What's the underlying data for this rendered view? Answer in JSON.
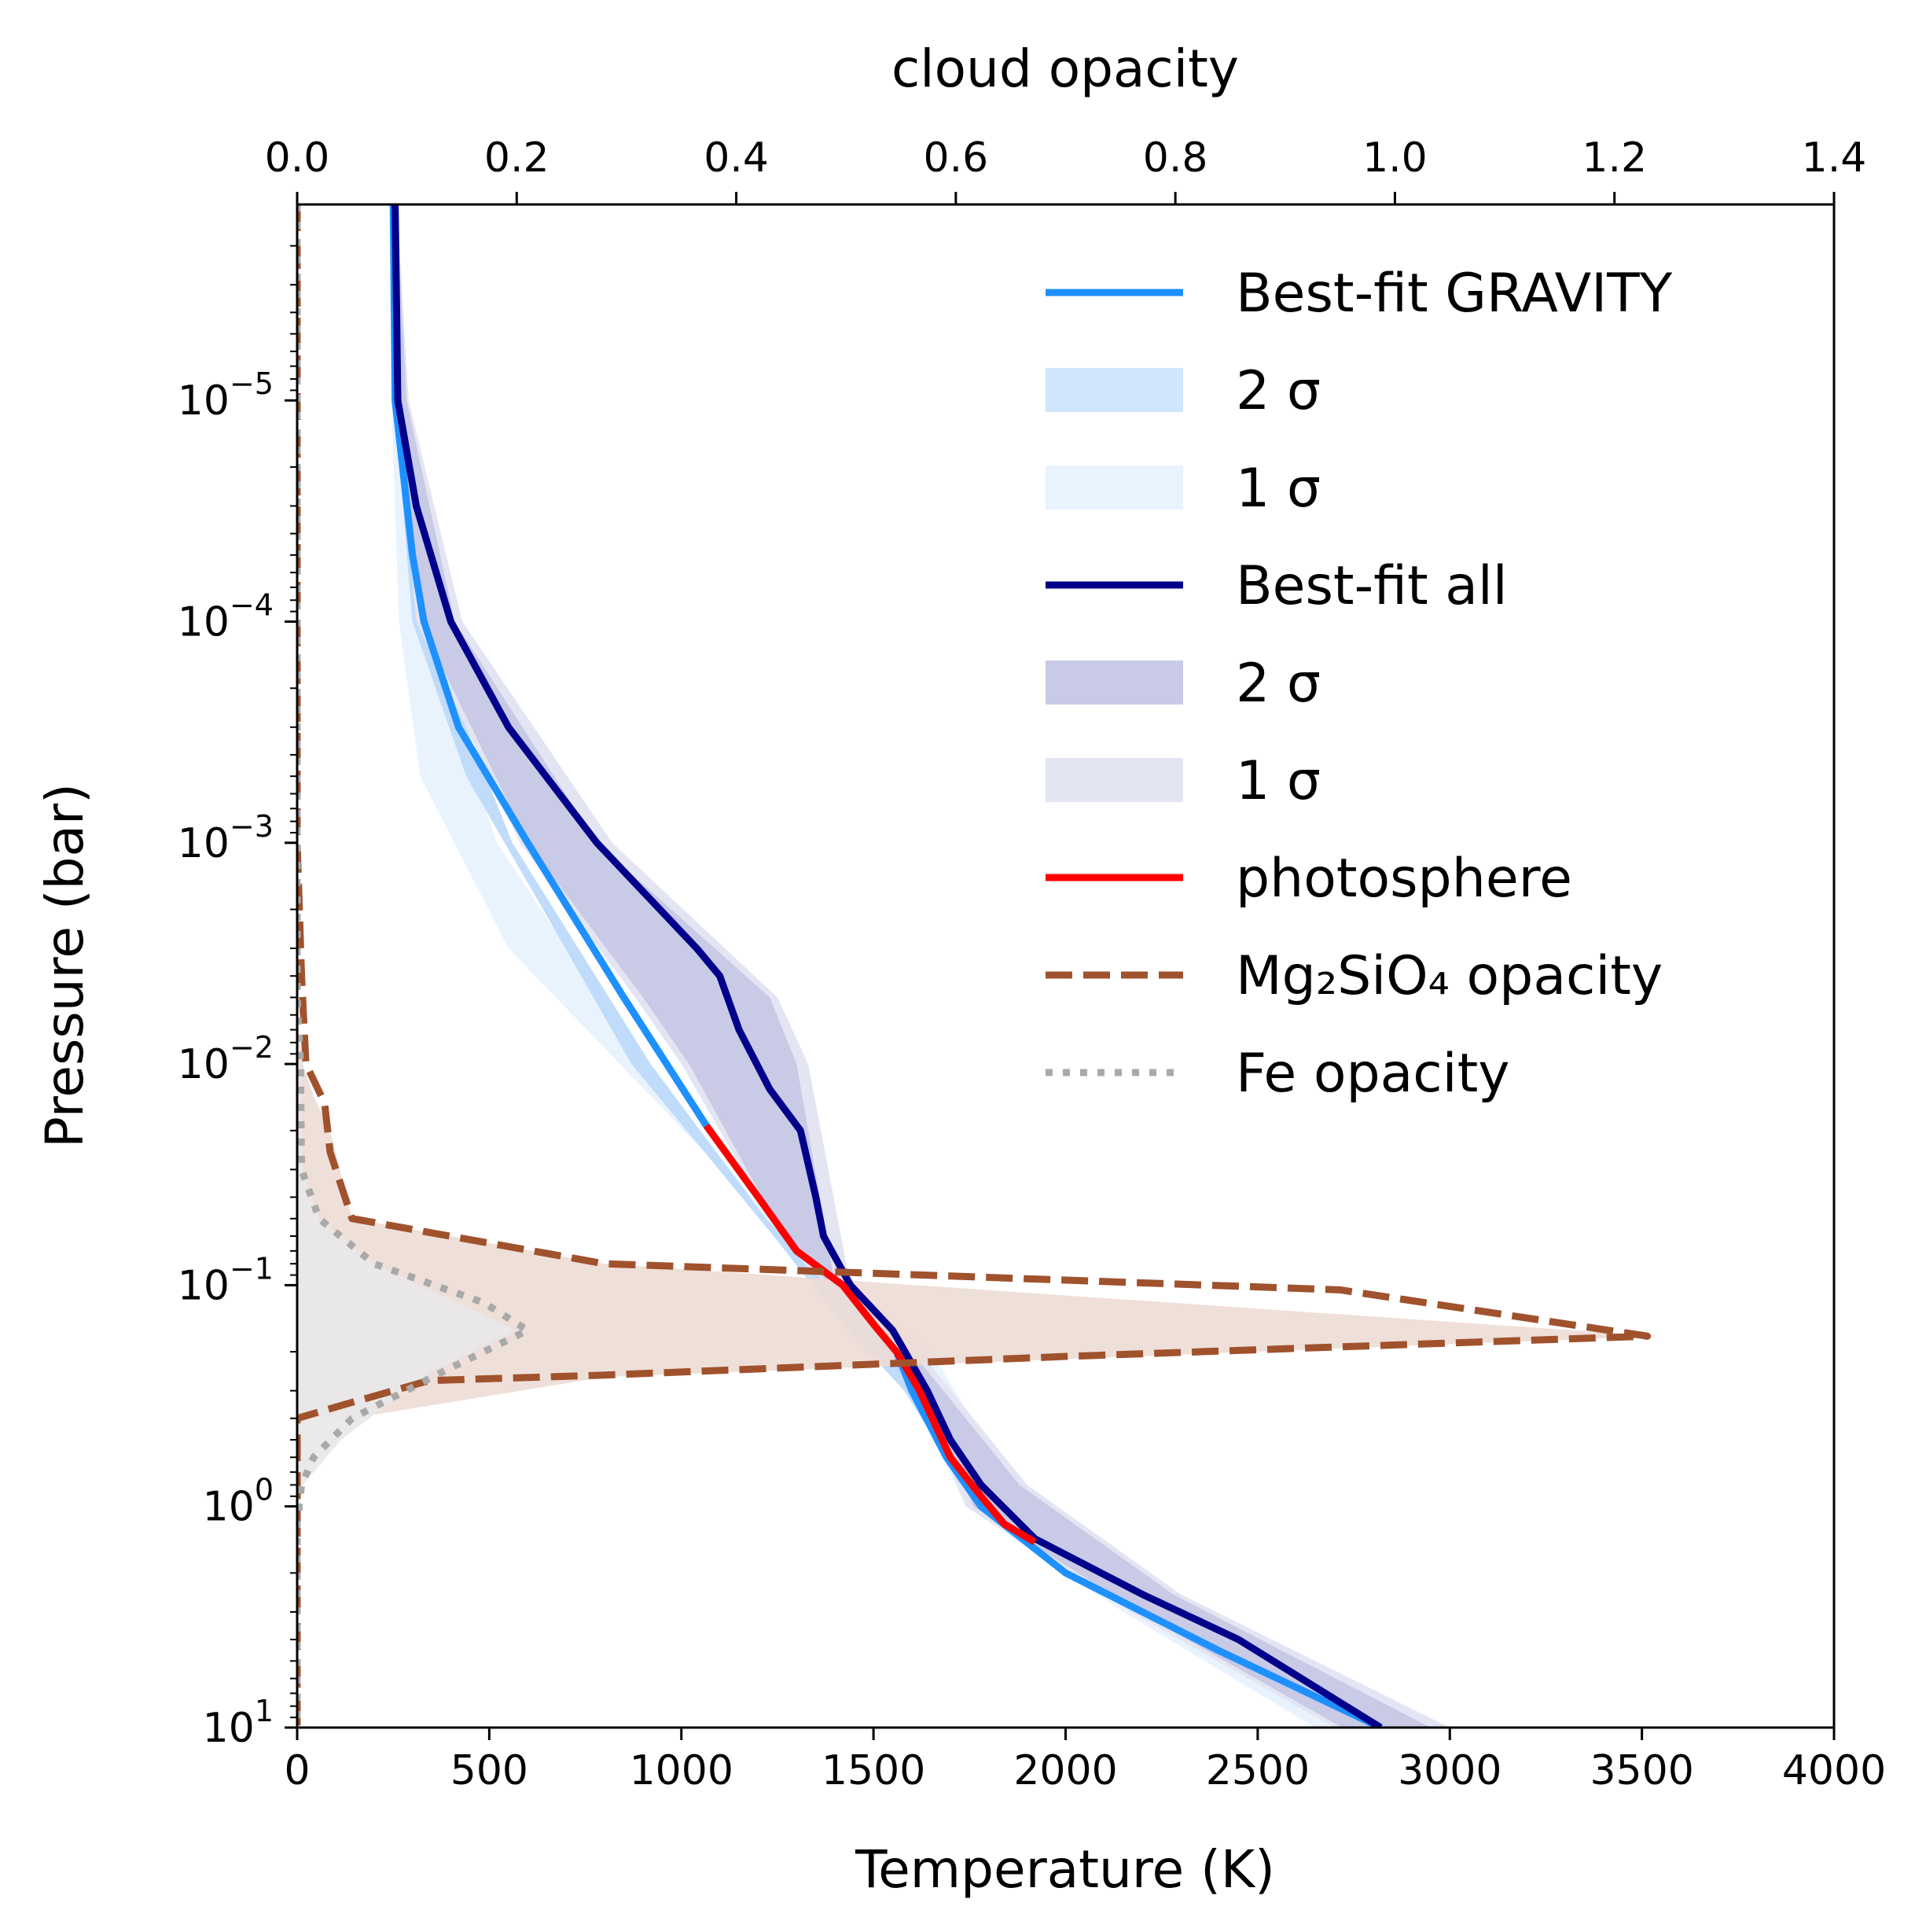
{
  "chart_data": {
    "type": "line",
    "title": "",
    "xlabel": "Temperature (K)",
    "ylabel": "Pressure (bar)",
    "x2label": "cloud opacity",
    "xlim": [
      0,
      4000
    ],
    "x2lim": [
      0,
      1.4
    ],
    "ylim": [
      1.3e-06,
      10
    ],
    "yscale": "log",
    "y_inverted": true,
    "grid": false,
    "legend_position": "top-right",
    "x_ticks": [
      "0",
      "500",
      "1000",
      "1500",
      "2000",
      "2500",
      "3000",
      "3500",
      "4000"
    ],
    "x2_ticks": [
      "0.0",
      "0.2",
      "0.4",
      "0.6",
      "0.8",
      "1.0",
      "1.2",
      "1.4"
    ],
    "y_ticks": [
      {
        "base": "10",
        "exp": "−5"
      },
      {
        "base": "10",
        "exp": "−4"
      },
      {
        "base": "10",
        "exp": "−3"
      },
      {
        "base": "10",
        "exp": "−2"
      },
      {
        "base": "10",
        "exp": "−1"
      },
      {
        "base": "10",
        "exp": "0"
      },
      {
        "base": "10",
        "exp": "1"
      }
    ],
    "legend": [
      {
        "label": "Best-fit GRAVITY",
        "kind": "line",
        "color": "#1e90ff"
      },
      {
        "label": "2 σ",
        "kind": "patch",
        "color": "#d0e6fc"
      },
      {
        "label": "1 σ",
        "kind": "patch",
        "color": "#e9f3fe"
      },
      {
        "label": "Best-fit all",
        "kind": "line",
        "color": "#00008b"
      },
      {
        "label": "2 σ",
        "kind": "patch",
        "color": "#c9cae6"
      },
      {
        "label": "1 σ",
        "kind": "patch",
        "color": "#e4e5f2"
      },
      {
        "label": "photosphere",
        "kind": "line",
        "color": "#ff0000"
      },
      {
        "label": "Mg₂SiO₄ opacity",
        "kind": "dashed",
        "color": "#a0522d"
      },
      {
        "label": "Fe opacity",
        "kind": "dotted",
        "color": "#a9a9a9"
      }
    ],
    "series": [
      {
        "id": "gravity-1sigma",
        "axis": "temperature",
        "color": "#e9f3fe",
        "upper": [
          [
            250,
            1.3e-06
          ],
          [
            265,
            1e-05
          ],
          [
            320,
            0.0001
          ],
          [
            520,
            0.001
          ],
          [
            900,
            0.01
          ],
          [
            1230,
            0.05
          ],
          [
            1450,
            0.1
          ],
          [
            1650,
            0.2
          ],
          [
            1860,
            0.8
          ],
          [
            2250,
            2.5
          ],
          [
            2950,
            10
          ]
        ],
        "lower": [
          [
            250,
            1.3e-06
          ],
          [
            245,
            1e-05
          ],
          [
            265,
            0.0001
          ],
          [
            320,
            0.0005
          ],
          [
            550,
            0.003
          ],
          [
            840,
            0.01
          ],
          [
            1060,
            0.025
          ],
          [
            1260,
            0.06
          ],
          [
            1440,
            0.15
          ],
          [
            1600,
            0.3
          ],
          [
            1740,
            1
          ],
          [
            2150,
            3
          ],
          [
            2650,
            10
          ]
        ]
      },
      {
        "id": "gravity-2sigma",
        "axis": "temperature",
        "color": "#c0dcfa",
        "upper": [
          [
            255,
            1.3e-06
          ],
          [
            265,
            1e-05
          ],
          [
            330,
            0.0001
          ],
          [
            560,
            0.001
          ],
          [
            920,
            0.01
          ],
          [
            1220,
            0.05
          ],
          [
            1390,
            0.1
          ],
          [
            1610,
            0.2
          ],
          [
            1830,
            0.8
          ],
          [
            2200,
            2.5
          ],
          [
            2900,
            10
          ]
        ],
        "lower": [
          [
            255,
            1.3e-06
          ],
          [
            252,
            1e-05
          ],
          [
            300,
            0.0001
          ],
          [
            440,
            0.0005
          ],
          [
            640,
            0.002
          ],
          [
            870,
            0.01
          ],
          [
            1060,
            0.025
          ],
          [
            1240,
            0.06
          ],
          [
            1420,
            0.15
          ],
          [
            1580,
            0.3
          ],
          [
            1770,
            1
          ],
          [
            2180,
            3
          ],
          [
            2700,
            10
          ]
        ]
      },
      {
        "id": "all-1sigma",
        "axis": "temperature",
        "color": "#e4e5f2",
        "upper": [
          [
            260,
            1.3e-06
          ],
          [
            290,
            1e-05
          ],
          [
            430,
            0.0001
          ],
          [
            820,
            0.001
          ],
          [
            1250,
            0.005
          ],
          [
            1330,
            0.01
          ],
          [
            1440,
            0.1
          ],
          [
            1620,
            0.2
          ],
          [
            1900,
            0.8
          ],
          [
            2300,
            2.5
          ],
          [
            3000,
            10
          ]
        ],
        "lower": [
          [
            250,
            1.3e-06
          ],
          [
            255,
            1e-05
          ],
          [
            310,
            0.0001
          ],
          [
            580,
            0.001
          ],
          [
            880,
            0.005
          ],
          [
            1000,
            0.01
          ],
          [
            1200,
            0.04
          ],
          [
            1320,
            0.08
          ],
          [
            1500,
            0.15
          ],
          [
            1620,
            0.3
          ],
          [
            1740,
            1
          ],
          [
            2170,
            3
          ],
          [
            2700,
            10
          ]
        ]
      },
      {
        "id": "all-2sigma",
        "axis": "temperature",
        "color": "#c9cae6",
        "upper": [
          [
            258,
            1.3e-06
          ],
          [
            285,
            1e-05
          ],
          [
            410,
            0.0001
          ],
          [
            780,
            0.001
          ],
          [
            1230,
            0.005
          ],
          [
            1300,
            0.01
          ],
          [
            1400,
            0.1
          ],
          [
            1600,
            0.2
          ],
          [
            1880,
            0.8
          ],
          [
            2280,
            2.5
          ],
          [
            2950,
            10
          ]
        ],
        "lower": [
          [
            252,
            1.3e-06
          ],
          [
            258,
            1e-05
          ],
          [
            320,
            0.0001
          ],
          [
            600,
            0.001
          ],
          [
            900,
            0.005
          ],
          [
            1020,
            0.01
          ],
          [
            1210,
            0.04
          ],
          [
            1330,
            0.08
          ],
          [
            1510,
            0.15
          ],
          [
            1630,
            0.3
          ],
          [
            1760,
            1
          ],
          [
            2190,
            3
          ],
          [
            2720,
            10
          ]
        ]
      },
      {
        "id": "cloud-mg2sio4-fill",
        "axis": "opacity",
        "color": "#eddcd5",
        "points": [
          [
            0,
            0.006
          ],
          [
            0.005,
            0.01
          ],
          [
            0.015,
            0.014
          ],
          [
            0.03,
            0.02
          ],
          [
            0.05,
            0.05
          ],
          [
            0.28,
            0.08
          ],
          [
            1.24,
            0.17
          ],
          [
            0.28,
            0.26
          ],
          [
            0.05,
            0.4
          ],
          [
            0,
            0.4
          ]
        ]
      },
      {
        "id": "cloud-fe-fill",
        "axis": "opacity",
        "color": "#e8e8e8",
        "points": [
          [
            0,
            0.006
          ],
          [
            0.003,
            0.01
          ],
          [
            0.005,
            0.03
          ],
          [
            0.02,
            0.05
          ],
          [
            0.07,
            0.08
          ],
          [
            0.2,
            0.16
          ],
          [
            0.12,
            0.25
          ],
          [
            0.04,
            0.5
          ],
          [
            0.005,
            0.8
          ],
          [
            0,
            1.3
          ]
        ]
      },
      {
        "id": "best-fit-gravity",
        "axis": "temperature",
        "color": "#1e90ff",
        "points": [
          [
            250,
            1.3e-06
          ],
          [
            255,
            1e-05
          ],
          [
            300,
            5e-05
          ],
          [
            330,
            0.0001
          ],
          [
            420,
            0.0003
          ],
          [
            600,
            0.001
          ],
          [
            850,
            0.005
          ],
          [
            1065,
            0.019
          ],
          [
            1200,
            0.04
          ],
          [
            1300,
            0.07
          ],
          [
            1420,
            0.1
          ],
          [
            1500,
            0.15
          ],
          [
            1560,
            0.2
          ],
          [
            1600,
            0.3
          ],
          [
            1690,
            0.6
          ],
          [
            1780,
            1
          ],
          [
            2000,
            2
          ],
          [
            2400,
            4.5
          ],
          [
            2820,
            10
          ]
        ]
      },
      {
        "id": "best-fit-all",
        "axis": "temperature",
        "color": "#00008b",
        "points": [
          [
            255,
            1.3e-06
          ],
          [
            262,
            1e-05
          ],
          [
            310,
            3e-05
          ],
          [
            400,
            0.0001
          ],
          [
            550,
            0.0003
          ],
          [
            780,
            0.001
          ],
          [
            1040,
            0.003
          ],
          [
            1100,
            0.004
          ],
          [
            1150,
            0.007
          ],
          [
            1230,
            0.013
          ],
          [
            1310,
            0.02
          ],
          [
            1350,
            0.04
          ],
          [
            1370,
            0.06
          ],
          [
            1440,
            0.1
          ],
          [
            1550,
            0.16
          ],
          [
            1640,
            0.3
          ],
          [
            1700,
            0.5
          ],
          [
            1780,
            0.8
          ],
          [
            1920,
            1.4
          ],
          [
            2200,
            2.5
          ],
          [
            2450,
            4
          ],
          [
            2820,
            10
          ]
        ]
      },
      {
        "id": "photosphere",
        "axis": "temperature",
        "color": "#ff0000",
        "points": [
          [
            1065,
            0.019
          ],
          [
            1200,
            0.04
          ],
          [
            1300,
            0.07
          ],
          [
            1420,
            0.1
          ],
          [
            1500,
            0.15
          ],
          [
            1560,
            0.2
          ],
          [
            1620,
            0.3
          ],
          [
            1700,
            0.6
          ],
          [
            1780,
            0.9
          ],
          [
            1840,
            1.2
          ],
          [
            1920,
            1.45
          ]
        ]
      },
      {
        "id": "mg2sio4-opacity",
        "axis": "opacity",
        "color": "#a0522d",
        "style": "dashed",
        "points": [
          [
            0,
            1.3e-06
          ],
          [
            0,
            0.001
          ],
          [
            0.004,
            0.004
          ],
          [
            0.008,
            0.01
          ],
          [
            0.025,
            0.015
          ],
          [
            0.03,
            0.025
          ],
          [
            0.05,
            0.05
          ],
          [
            0.28,
            0.08
          ],
          [
            0.95,
            0.105
          ],
          [
            1.23,
            0.17
          ],
          [
            0.7,
            0.21
          ],
          [
            0.28,
            0.255
          ],
          [
            0.12,
            0.27
          ],
          [
            0.04,
            0.35
          ],
          [
            0,
            0.4
          ],
          [
            0,
            10
          ]
        ]
      },
      {
        "id": "fe-opacity",
        "axis": "opacity",
        "color": "#a9a9a9",
        "style": "dotted",
        "points": [
          [
            0,
            1.3e-06
          ],
          [
            0,
            0.005
          ],
          [
            0.003,
            0.01
          ],
          [
            0.004,
            0.03
          ],
          [
            0.02,
            0.05
          ],
          [
            0.07,
            0.08
          ],
          [
            0.17,
            0.12
          ],
          [
            0.21,
            0.16
          ],
          [
            0.13,
            0.25
          ],
          [
            0.05,
            0.4
          ],
          [
            0.015,
            0.6
          ],
          [
            0.004,
            0.8
          ],
          [
            0,
            1.2
          ],
          [
            0,
            10
          ]
        ]
      }
    ]
  }
}
